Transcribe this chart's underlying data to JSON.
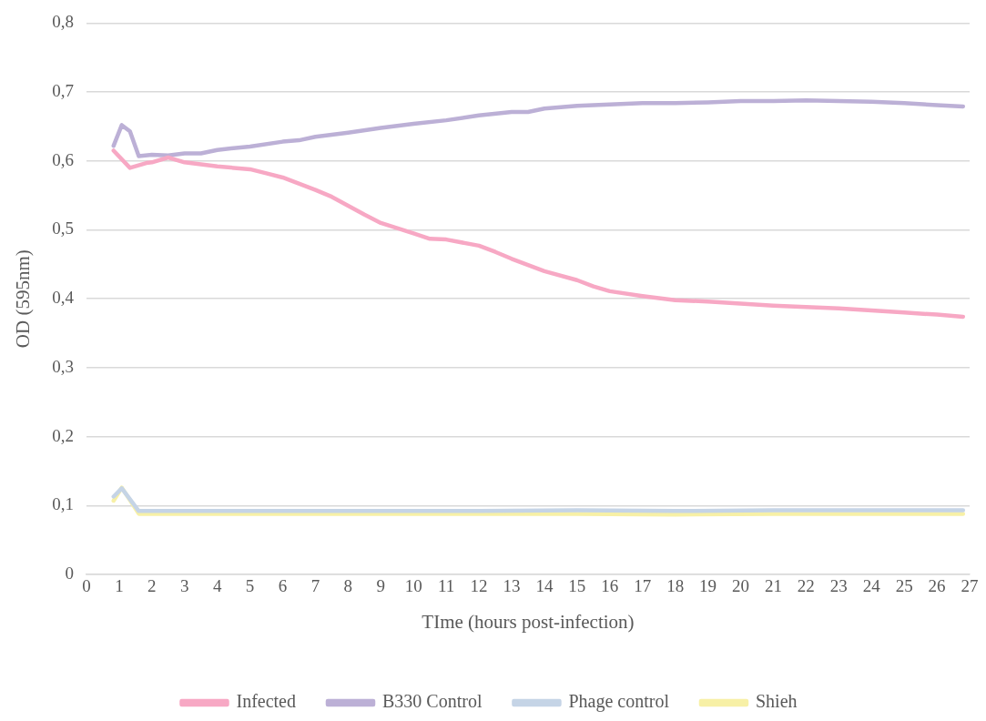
{
  "chart_data": {
    "type": "line",
    "xlabel": "TIme (hours post-infection)",
    "ylabel": "OD (595nm)",
    "xlim": [
      0,
      27
    ],
    "xticks": [
      0,
      1,
      2,
      3,
      4,
      5,
      6,
      7,
      8,
      9,
      10,
      11,
      12,
      13,
      14,
      15,
      16,
      17,
      18,
      19,
      20,
      21,
      22,
      23,
      24,
      25,
      26,
      27
    ],
    "ylim": [
      0,
      0.8
    ],
    "yticks": [
      {
        "value": 0,
        "label": "0"
      },
      {
        "value": 0.1,
        "label": "0,1"
      },
      {
        "value": 0.2,
        "label": "0,2"
      },
      {
        "value": 0.3,
        "label": "0,3"
      },
      {
        "value": 0.4,
        "label": "0,4"
      },
      {
        "value": 0.5,
        "label": "0,5"
      },
      {
        "value": 0.6,
        "label": "0,6"
      },
      {
        "value": 0.7,
        "label": "0,7"
      },
      {
        "value": 0.8,
        "label": "0,8"
      }
    ],
    "grid": "y",
    "legend": "bottom",
    "marker": "none",
    "line_style": "solid",
    "series": [
      {
        "name": "Infected",
        "color": "#f7a8c4",
        "x": [
          0.83,
          1.33,
          1.83,
          2.0,
          2.5,
          3,
          4,
          5,
          5.5,
          6,
          7,
          7.5,
          8,
          8.5,
          9,
          10,
          10.5,
          11,
          12,
          12.5,
          13,
          14,
          15,
          15.5,
          16,
          17,
          18,
          19,
          20,
          21,
          22,
          23,
          24,
          25,
          26,
          26.8
        ],
        "values": [
          0.615,
          0.59,
          0.597,
          0.598,
          0.605,
          0.598,
          0.592,
          0.588,
          0.582,
          0.576,
          0.558,
          0.548,
          0.535,
          0.522,
          0.51,
          0.495,
          0.487,
          0.486,
          0.477,
          0.468,
          0.458,
          0.44,
          0.427,
          0.418,
          0.411,
          0.404,
          0.398,
          0.396,
          0.393,
          0.39,
          0.388,
          0.386,
          0.383,
          0.38,
          0.377,
          0.374
        ]
      },
      {
        "name": "B330 Control",
        "color": "#bcb0d6",
        "x": [
          0.83,
          1.08,
          1.33,
          1.6,
          2,
          2.5,
          3,
          3.5,
          4,
          5,
          6,
          6.5,
          7,
          8,
          9,
          10,
          11,
          12,
          13,
          13.5,
          14,
          15,
          16,
          17,
          18,
          19,
          20,
          21,
          22,
          23,
          24,
          25,
          26,
          26.8
        ],
        "values": [
          0.622,
          0.652,
          0.643,
          0.607,
          0.609,
          0.608,
          0.611,
          0.611,
          0.616,
          0.621,
          0.628,
          0.63,
          0.635,
          0.641,
          0.648,
          0.654,
          0.659,
          0.666,
          0.671,
          0.671,
          0.676,
          0.68,
          0.682,
          0.684,
          0.684,
          0.685,
          0.687,
          0.687,
          0.688,
          0.687,
          0.686,
          0.684,
          0.681,
          0.679
        ]
      },
      {
        "name": "Phage control",
        "color": "#c5d4e6",
        "x": [
          0.83,
          1.08,
          1.6,
          3,
          6,
          9,
          12,
          15,
          18,
          21,
          24,
          26.8
        ],
        "values": [
          0.113,
          0.125,
          0.092,
          0.092,
          0.092,
          0.092,
          0.092,
          0.093,
          0.092,
          0.093,
          0.093,
          0.093
        ]
      },
      {
        "name": "Shieh",
        "color": "#f7f0a6",
        "x": [
          0.83,
          1.08,
          1.6,
          3,
          6,
          9,
          12,
          15,
          18,
          21,
          24,
          26.8
        ],
        "values": [
          0.107,
          0.126,
          0.088,
          0.088,
          0.088,
          0.088,
          0.088,
          0.088,
          0.087,
          0.088,
          0.088,
          0.088
        ]
      }
    ]
  }
}
